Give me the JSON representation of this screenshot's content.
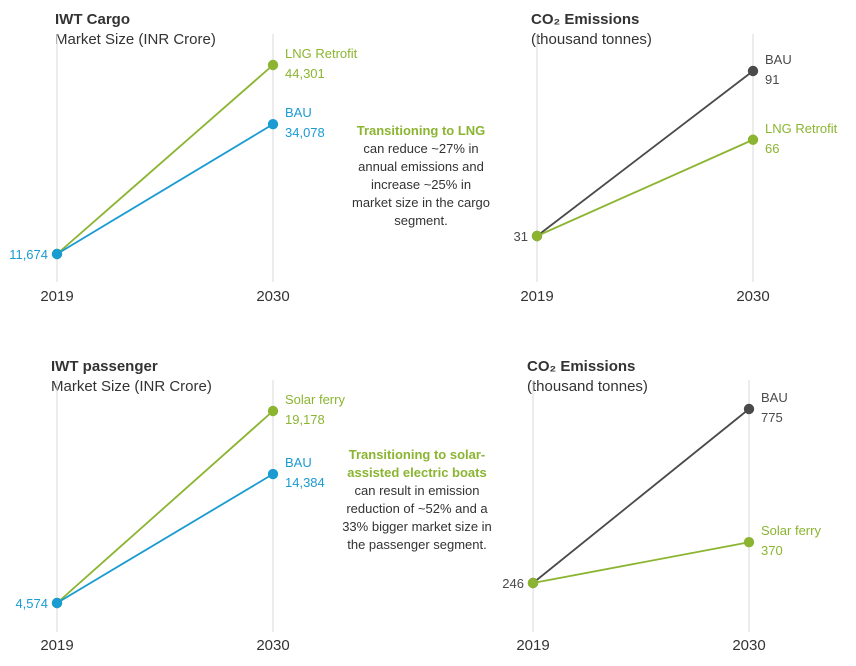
{
  "colors": {
    "bau_market": "#1a9bd1",
    "bau_emission": "#4a4a4a",
    "green": "#8bb531",
    "axis": "#d9d9d9",
    "text": "#333333"
  },
  "chart_data": [
    {
      "id": "cargo-market",
      "type": "line",
      "title": "IWT Cargo",
      "subtitle": "Market Size (INR Crore)",
      "categories": [
        "2019",
        "2030"
      ],
      "ylim": [
        11674,
        44301
      ],
      "series": [
        {
          "name": "LNG Retrofit",
          "values": [
            11674,
            44301
          ],
          "labels": [
            "",
            "44,301"
          ],
          "color": "#8bb531"
        },
        {
          "name": "BAU",
          "values": [
            11674,
            34078
          ],
          "labels": [
            "11,674",
            "34,078"
          ],
          "color": "#1a9bd1"
        }
      ]
    },
    {
      "id": "cargo-emissions",
      "type": "line",
      "title": "CO₂ Emissions",
      "subtitle": "(thousand tonnes)",
      "categories": [
        "2019",
        "2030"
      ],
      "ylim": [
        31,
        91
      ],
      "series": [
        {
          "name": "BAU",
          "values": [
            31,
            91
          ],
          "labels": [
            "31",
            "91"
          ],
          "color": "#4a4a4a"
        },
        {
          "name": "LNG Retrofit",
          "values": [
            31,
            66
          ],
          "labels": [
            "",
            "66"
          ],
          "color": "#8bb531"
        }
      ]
    },
    {
      "id": "passenger-market",
      "type": "line",
      "title": "IWT passenger",
      "subtitle": "Market Size (INR Crore)",
      "categories": [
        "2019",
        "2030"
      ],
      "ylim": [
        4574,
        19178
      ],
      "series": [
        {
          "name": "Solar ferry",
          "values": [
            4574,
            19178
          ],
          "labels": [
            "",
            "19,178"
          ],
          "color": "#8bb531"
        },
        {
          "name": "BAU",
          "values": [
            4574,
            14384
          ],
          "labels": [
            "4,574",
            "14,384"
          ],
          "color": "#1a9bd1"
        }
      ]
    },
    {
      "id": "passenger-emissions",
      "type": "line",
      "title": "CO₂ Emissions",
      "subtitle": "(thousand tonnes)",
      "categories": [
        "2019",
        "2030"
      ],
      "ylim": [
        246,
        775
      ],
      "series": [
        {
          "name": "BAU",
          "values": [
            246,
            775
          ],
          "labels": [
            "246",
            "775"
          ],
          "color": "#4a4a4a"
        },
        {
          "name": "Solar ferry",
          "values": [
            246,
            370
          ],
          "labels": [
            "",
            "370"
          ],
          "color": "#8bb531"
        }
      ]
    }
  ],
  "notes": {
    "cargo": {
      "highlight": "Transitioning to LNG",
      "text": " can reduce ~27% in annual emissions and increase ~25% in market size in the cargo segment."
    },
    "passenger": {
      "highlight": "Transitioning to solar-assisted electric boats",
      "text": " can result in emission reduction of ~52% and a 33% bigger market size in the passenger segment."
    }
  }
}
